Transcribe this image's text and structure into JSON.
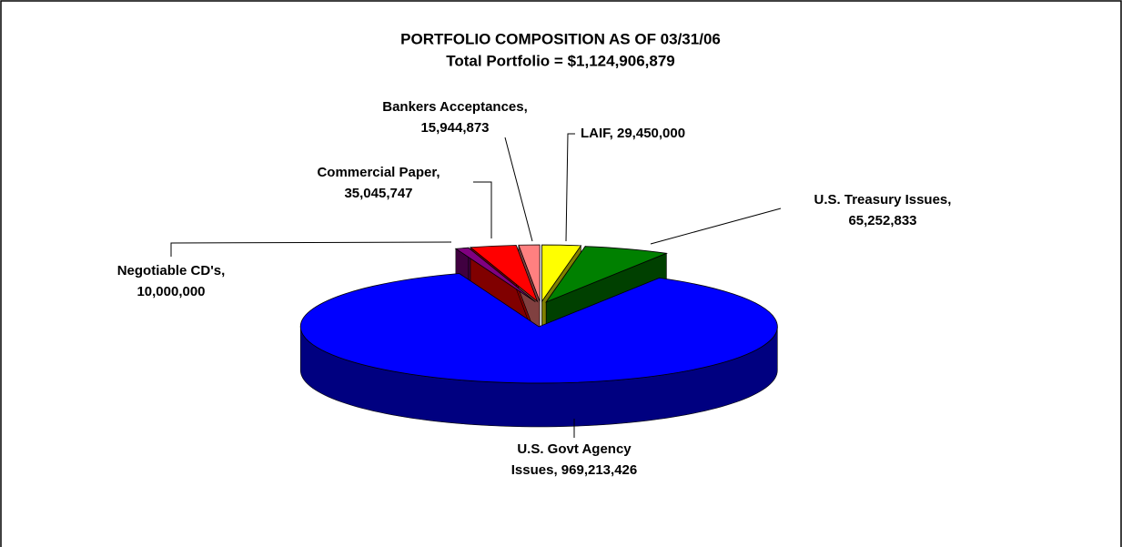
{
  "chart_data": {
    "type": "pie",
    "title": "PORTFOLIO COMPOSITION AS OF 03/31/06",
    "subtitle": "Total Portfolio = $1,124,906,879",
    "values": [
      29450000,
      65252833,
      969213426,
      10000000,
      35045747,
      15944873
    ],
    "value_labels": [
      [
        "LAIF, 29,450,000"
      ],
      [
        "U.S. Treasury Issues,",
        "65,252,833"
      ],
      [
        "U.S. Govt Agency",
        "Issues, 969,213,426"
      ],
      [
        "Negotiable CD's,",
        "10,000,000"
      ],
      [
        "Commercial Paper,",
        "35,045,747"
      ],
      [
        "Bankers Acceptances,",
        "15,944,873"
      ]
    ],
    "colors": [
      "#ffff00",
      "#008000",
      "#0000ff",
      "#800080",
      "#ff0000",
      "#ff8080"
    ]
  }
}
